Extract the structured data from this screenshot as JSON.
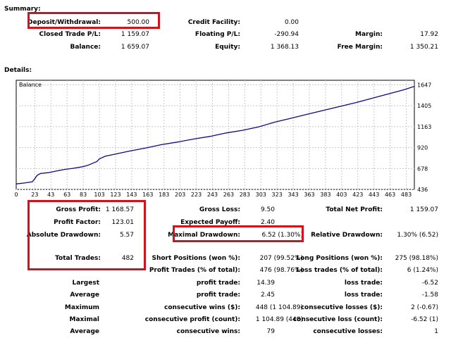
{
  "summary": {
    "title": "Summary:",
    "rows": [
      [
        {
          "label": "Deposit/Withdrawal:",
          "value": "500.00"
        },
        {
          "label": "Credit Facility:",
          "value": "0.00"
        },
        {
          "label": "",
          "value": ""
        }
      ],
      [
        {
          "label": "Closed Trade P/L:",
          "value": "1 159.07"
        },
        {
          "label": "Floating P/L:",
          "value": "-290.94"
        },
        {
          "label": "Margin:",
          "value": "17.92"
        }
      ],
      [
        {
          "label": "Balance:",
          "value": "1 659.07"
        },
        {
          "label": "Equity:",
          "value": "1 368.13"
        },
        {
          "label": "Free Margin:",
          "value": "1 350.21"
        }
      ]
    ]
  },
  "details": {
    "title": "Details:",
    "rows": [
      [
        {
          "label": "Gross Profit:",
          "value": "1 168.57"
        },
        {
          "label": "Gross Loss:",
          "value": "9.50"
        },
        {
          "label": "Total Net Profit:",
          "value": "1 159.07"
        }
      ],
      [
        {
          "label": "Profit Factor:",
          "value": "123.01"
        },
        {
          "label": "Expected Payoff:",
          "value": "2.40"
        },
        {
          "label": "",
          "value": ""
        }
      ],
      [
        {
          "label": "Absolute Drawdown:",
          "value": "5.57"
        },
        {
          "label": "Maximal Drawdown:",
          "value": "6.52 (1.30%)"
        },
        {
          "label": "Relative Drawdown:",
          "value": "1.30% (6.52)"
        }
      ],
      [
        {
          "label": "Total Trades:",
          "value": "482"
        },
        {
          "label": "Short Positions (won %):",
          "value": "207 (99.52%)"
        },
        {
          "label": "Long Positions (won %):",
          "value": "275 (98.18%)"
        }
      ],
      [
        {
          "label": "",
          "value": ""
        },
        {
          "label": "Profit Trades (% of total):",
          "value": "476 (98.76%)"
        },
        {
          "label": "Loss trades (% of total):",
          "value": "6 (1.24%)"
        }
      ],
      [
        {
          "label": "Largest",
          "value": ""
        },
        {
          "label": "profit trade:",
          "value": "14.39"
        },
        {
          "label": "loss trade:",
          "value": "-6.52"
        }
      ],
      [
        {
          "label": "Average",
          "value": ""
        },
        {
          "label": "profit trade:",
          "value": "2.45"
        },
        {
          "label": "loss trade:",
          "value": "-1.58"
        }
      ],
      [
        {
          "label": "Maximum",
          "value": ""
        },
        {
          "label": "consecutive wins ($):",
          "value": "448 (1 104.89)"
        },
        {
          "label": "consecutive losses ($):",
          "value": "2 (-0.67)"
        }
      ],
      [
        {
          "label": "Maximal",
          "value": ""
        },
        {
          "label": "consecutive profit (count):",
          "value": "1 104.89 (448)"
        },
        {
          "label": "consecutive loss (count):",
          "value": "-6.52 (1)"
        }
      ],
      [
        {
          "label": "Average",
          "value": ""
        },
        {
          "label": "consecutive wins:",
          "value": "79"
        },
        {
          "label": "consecutive losses:",
          "value": "1"
        }
      ]
    ]
  },
  "chart_data": {
    "type": "line",
    "title": "Balance",
    "x_ticks": [
      0,
      23,
      43,
      63,
      83,
      103,
      123,
      143,
      163,
      183,
      203,
      223,
      243,
      263,
      283,
      303,
      323,
      343,
      363,
      383,
      403,
      423,
      443,
      463,
      483
    ],
    "y_ticks": [
      436,
      678,
      920,
      1163,
      1405,
      1647
    ],
    "xlim": [
      0,
      493
    ],
    "ylim": [
      436,
      1700
    ],
    "series": [
      {
        "name": "Balance",
        "x": [
          0,
          10,
          20,
          23,
          26,
          30,
          40,
          50,
          60,
          70,
          80,
          85,
          90,
          95,
          100,
          103,
          110,
          120,
          140,
          160,
          180,
          200,
          220,
          240,
          260,
          280,
          300,
          320,
          340,
          360,
          380,
          400,
          420,
          440,
          460,
          480,
          493
        ],
        "y": [
          500,
          510,
          525,
          560,
          600,
          620,
          630,
          650,
          668,
          680,
          695,
          705,
          720,
          740,
          760,
          790,
          820,
          840,
          880,
          915,
          955,
          985,
          1020,
          1050,
          1090,
          1120,
          1160,
          1215,
          1260,
          1305,
          1350,
          1395,
          1440,
          1490,
          1540,
          1590,
          1630
        ]
      }
    ],
    "line_color": "#0b0b80",
    "grid": true
  }
}
